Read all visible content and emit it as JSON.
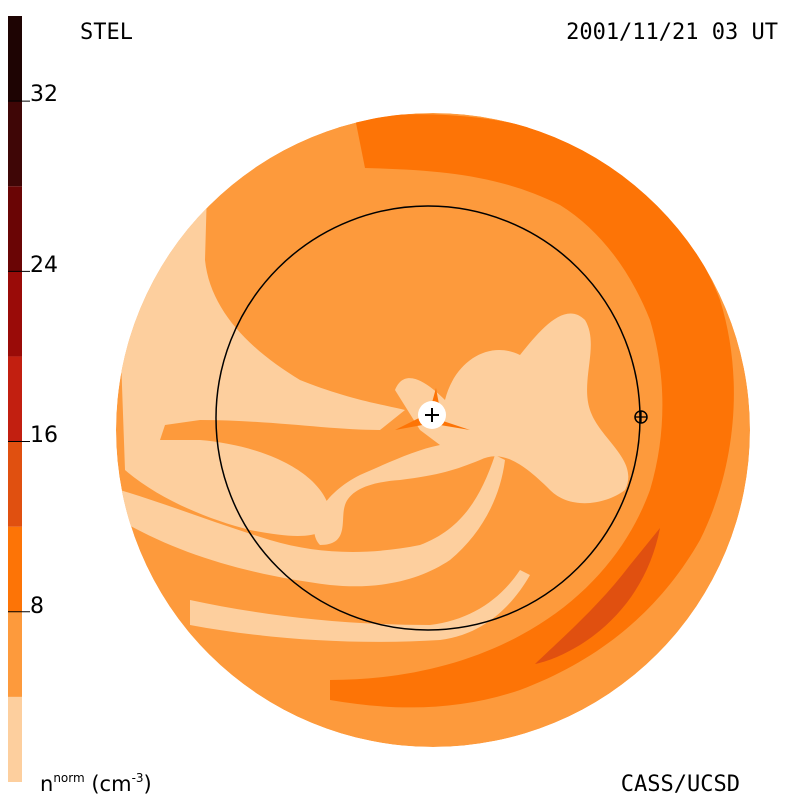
{
  "header": {
    "organization": "STEL",
    "timestamp": "2001/11/21 03 UT"
  },
  "footer": {
    "credit": "CASS/UCSD"
  },
  "colorbar": {
    "unit_base": "n",
    "unit_sup": "norm",
    "unit_paren": "(cm",
    "unit_exp": "-3",
    "unit_close": ")",
    "ticks": [
      {
        "value": 32,
        "label": "32"
      },
      {
        "value": 24,
        "label": "24"
      },
      {
        "value": 16,
        "label": "16"
      },
      {
        "value": 8,
        "label": "8"
      }
    ],
    "levels": [
      {
        "min": 0,
        "max": 4,
        "color": "#fdcf9e"
      },
      {
        "min": 4,
        "max": 8,
        "color": "#fd9a3c"
      },
      {
        "min": 8,
        "max": 12,
        "color": "#fd7406"
      },
      {
        "min": 12,
        "max": 16,
        "color": "#e05010"
      },
      {
        "min": 16,
        "max": 20,
        "color": "#c21f10"
      },
      {
        "min": 20,
        "max": 24,
        "color": "#9a0b08"
      },
      {
        "min": 24,
        "max": 28,
        "color": "#6a0505"
      },
      {
        "min": 28,
        "max": 32,
        "color": "#3f0606"
      },
      {
        "min": 32,
        "max": 36,
        "color": "#1e0403"
      }
    ]
  },
  "map": {
    "orbit": "earth-orbit-circle",
    "center_marker": "sun-icon",
    "earth_marker": "earth-icon"
  }
}
